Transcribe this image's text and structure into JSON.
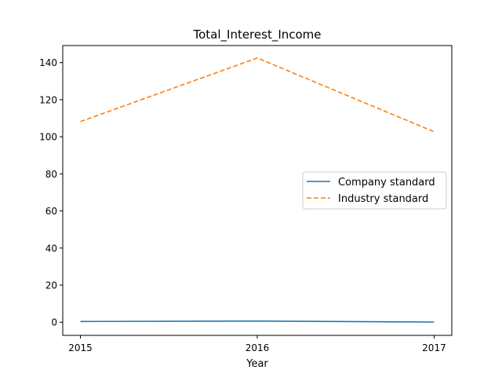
{
  "chart_data": {
    "type": "line",
    "title": "Total_Interest_Income",
    "xlabel": "Year",
    "ylabel": "",
    "x": [
      2015,
      2016,
      2017
    ],
    "x_tick_labels": [
      "2015",
      "2016",
      "2017"
    ],
    "y_ticks": [
      0,
      20,
      40,
      60,
      80,
      100,
      120,
      140
    ],
    "y_tick_labels": [
      "0",
      "20",
      "40",
      "60",
      "80",
      "100",
      "120",
      "140"
    ],
    "ylim": [
      -7.1,
      149.2
    ],
    "xlim": [
      2014.9,
      2017.1
    ],
    "grid": false,
    "legend_position": "center-right",
    "series": [
      {
        "name": "Company standard",
        "values": [
          0.4,
          0.6,
          0.1
        ],
        "color": "#1f77b4",
        "style": "solid"
      },
      {
        "name": "Industry standard",
        "values": [
          108.2,
          142.5,
          102.7
        ],
        "color": "#ff7f0e",
        "style": "dashed"
      }
    ]
  }
}
